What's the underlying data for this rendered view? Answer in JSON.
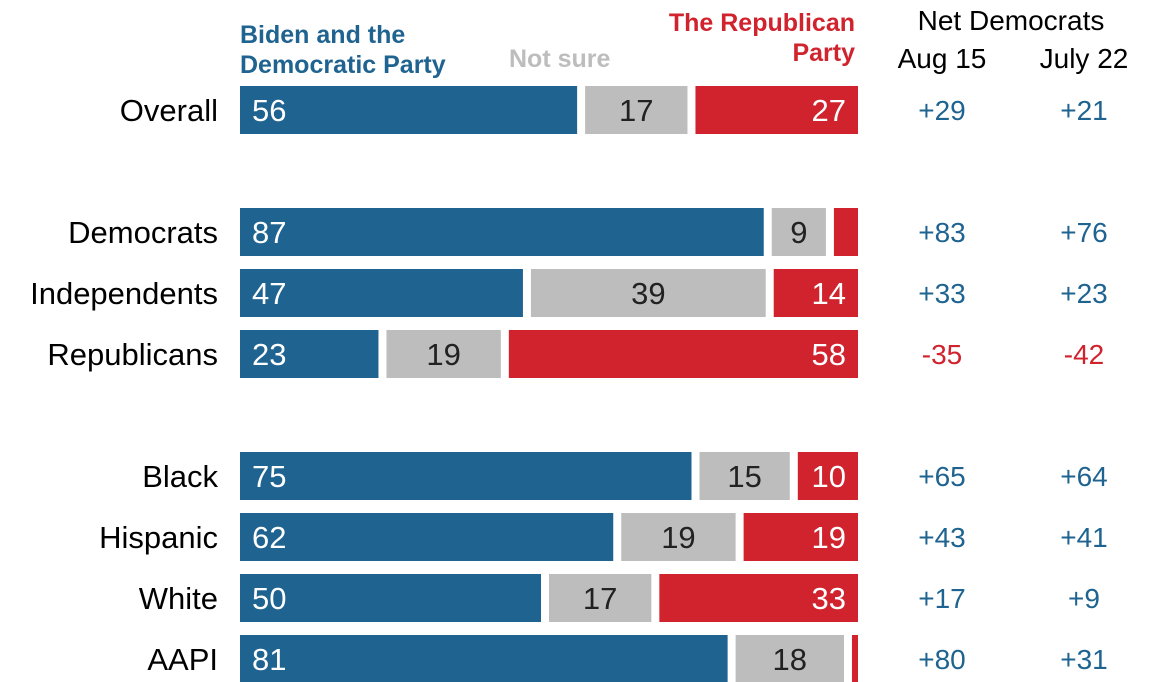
{
  "chart_data": {
    "type": "bar",
    "orientation": "horizontal-stacked",
    "legend": {
      "dem": "Biden and the Democratic Party",
      "not_sure": "Not sure",
      "rep": "The Republican Party"
    },
    "net_header": "Net Democrats",
    "net_columns": [
      "Aug 15",
      "July 22"
    ],
    "categories": [
      "Overall",
      "Democrats",
      "Independents",
      "Republicans",
      "Black",
      "Hispanic",
      "White",
      "AAPI"
    ],
    "groups": [
      [
        0
      ],
      [
        1,
        2,
        3
      ],
      [
        4,
        5,
        6,
        7
      ]
    ],
    "series": [
      {
        "name": "Biden and the Democratic Party",
        "values": [
          56,
          87,
          47,
          23,
          75,
          62,
          50,
          81
        ]
      },
      {
        "name": "Not sure",
        "values": [
          17,
          9,
          39,
          19,
          15,
          19,
          17,
          18
        ]
      },
      {
        "name": "The Republican Party",
        "values": [
          27,
          4,
          14,
          58,
          10,
          19,
          33,
          1
        ]
      }
    ],
    "rep_labels": [
      "27",
      "",
      "14",
      "58",
      "10",
      "19",
      "33",
      ""
    ],
    "net_aug15": [
      "+29",
      "+83",
      "+33",
      "-35",
      "+65",
      "+43",
      "+17",
      "+80"
    ],
    "net_july22": [
      "+21",
      "+76",
      "+23",
      "-42",
      "+64",
      "+41",
      "+9",
      "+31"
    ],
    "colors": {
      "dem": "#1f6390",
      "not_sure": "#bdbdbd",
      "rep": "#d0232d",
      "net_pos": "#1f6390",
      "net_neg": "#d0232d"
    }
  }
}
